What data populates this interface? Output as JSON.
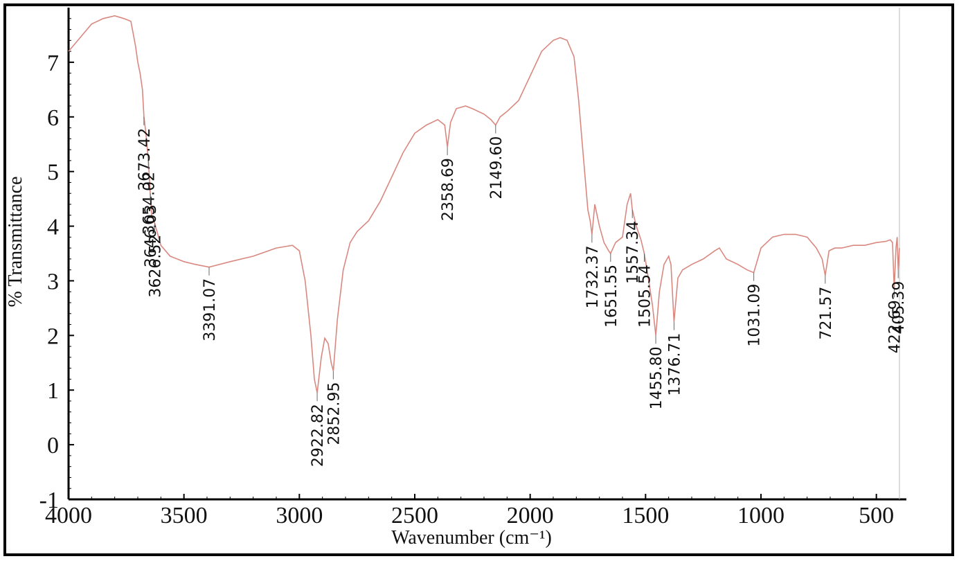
{
  "chart_data": {
    "type": "line",
    "title": "",
    "xlabel": "Wavenumber (cm⁻¹)",
    "ylabel": "% Transmittance",
    "xlim": [
      4000,
      400
    ],
    "ylim": [
      -1,
      8
    ],
    "x_ticks": [
      4000,
      3500,
      3000,
      2500,
      2000,
      1500,
      1000,
      500
    ],
    "y_ticks": [
      -1,
      0,
      1,
      2,
      3,
      4,
      5,
      6,
      7
    ],
    "grid": false,
    "line_color": "#d98880",
    "series": [
      {
        "x": [
          4000,
          3950,
          3900,
          3850,
          3800,
          3760,
          3730,
          3710,
          3700,
          3690,
          3680,
          3673.42,
          3665,
          3654.02,
          3646.03,
          3640,
          3626.52,
          3600,
          3560,
          3500,
          3450,
          3391.07,
          3300,
          3200,
          3100,
          3030,
          3000,
          2975,
          2950,
          2935,
          2922.82,
          2905,
          2890,
          2875,
          2862,
          2852.95,
          2835,
          2810,
          2780,
          2750,
          2700,
          2650,
          2600,
          2550,
          2500,
          2450,
          2400,
          2370,
          2358.69,
          2345,
          2320,
          2280,
          2250,
          2200,
          2170,
          2149.6,
          2130,
          2100,
          2050,
          2000,
          1950,
          1900,
          1870,
          1840,
          1810,
          1790,
          1770,
          1750,
          1740,
          1732.37,
          1720,
          1700,
          1680,
          1660,
          1651.55,
          1630,
          1600,
          1580,
          1565,
          1557.34,
          1540,
          1520,
          1505.54,
          1490,
          1470,
          1455.8,
          1440,
          1420,
          1400,
          1390,
          1376.71,
          1360,
          1340,
          1300,
          1250,
          1200,
          1180,
          1150,
          1100,
          1060,
          1031.09,
          1000,
          950,
          900,
          850,
          800,
          760,
          735,
          721.57,
          705,
          680,
          650,
          600,
          550,
          500,
          460,
          440,
          430,
          422.69,
          415,
          410,
          405.39,
          400
        ],
        "y": [
          7.2,
          7.45,
          7.7,
          7.8,
          7.85,
          7.8,
          7.75,
          7.3,
          7.0,
          6.8,
          6.5,
          6.0,
          5.7,
          5.2,
          4.6,
          4.2,
          4.05,
          3.65,
          3.45,
          3.35,
          3.3,
          3.25,
          3.35,
          3.45,
          3.6,
          3.65,
          3.55,
          3.0,
          2.0,
          1.2,
          0.95,
          1.6,
          1.95,
          1.85,
          1.5,
          1.35,
          2.3,
          3.2,
          3.7,
          3.9,
          4.1,
          4.45,
          4.9,
          5.35,
          5.7,
          5.85,
          5.95,
          5.85,
          5.45,
          5.9,
          6.15,
          6.2,
          6.15,
          6.05,
          5.95,
          5.85,
          6.0,
          6.1,
          6.3,
          6.75,
          7.2,
          7.4,
          7.45,
          7.4,
          7.1,
          6.3,
          5.3,
          4.3,
          4.1,
          3.85,
          4.4,
          4.0,
          3.7,
          3.55,
          3.5,
          3.7,
          3.8,
          4.4,
          4.6,
          4.3,
          4.0,
          3.75,
          3.5,
          3.1,
          2.55,
          2.0,
          2.8,
          3.3,
          3.45,
          3.3,
          2.25,
          3.05,
          3.2,
          3.3,
          3.4,
          3.55,
          3.6,
          3.4,
          3.3,
          3.2,
          3.15,
          3.6,
          3.8,
          3.85,
          3.85,
          3.8,
          3.6,
          3.4,
          3.1,
          3.55,
          3.6,
          3.6,
          3.65,
          3.65,
          3.7,
          3.72,
          3.75,
          3.7,
          2.85,
          3.6,
          3.8,
          3.2,
          3.6
        ]
      }
    ],
    "peaks": [
      {
        "x": 3673.42,
        "label": "3673.42"
      },
      {
        "x": 3654.02,
        "label": "3654.02"
      },
      {
        "x": 3646.03,
        "label": "3646.03"
      },
      {
        "x": 3626.52,
        "label": "3626.52"
      },
      {
        "x": 3391.07,
        "label": "3391.07"
      },
      {
        "x": 2922.82,
        "label": "2922.82"
      },
      {
        "x": 2852.95,
        "label": "2852.95"
      },
      {
        "x": 2358.69,
        "label": "2358.69"
      },
      {
        "x": 2149.6,
        "label": "2149.60"
      },
      {
        "x": 1732.37,
        "label": "1732.37"
      },
      {
        "x": 1651.55,
        "label": "1651.55"
      },
      {
        "x": 1557.34,
        "label": "1557.34"
      },
      {
        "x": 1505.54,
        "label": "1505.54"
      },
      {
        "x": 1455.8,
        "label": "1455.80"
      },
      {
        "x": 1376.71,
        "label": "1376.71"
      },
      {
        "x": 1031.09,
        "label": "1031.09"
      },
      {
        "x": 721.57,
        "label": "721.57"
      },
      {
        "x": 422.69,
        "label": "422.69"
      },
      {
        "x": 405.39,
        "label": "405.39"
      }
    ]
  }
}
